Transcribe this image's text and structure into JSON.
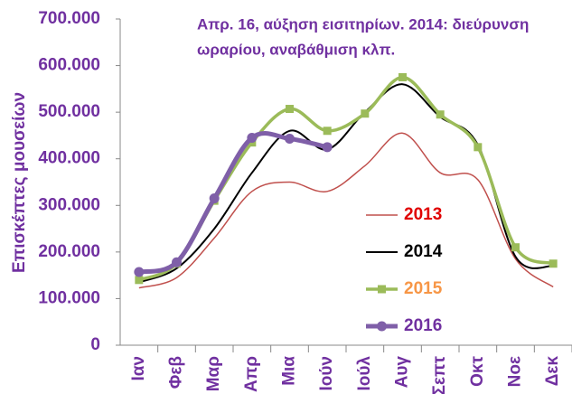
{
  "chart_data": {
    "type": "line",
    "annotation": [
      "Απρ. 16, αύξηση εισιτηρίων.  2014: διεύρυνση",
      "ωραρίου, αναβάθμιση κλπ."
    ],
    "y_label": "Επισκέπτες μουσείων",
    "categories": [
      "Ιαν",
      "Φεβ",
      "Μαρ",
      "Απρ",
      "Μια",
      "Ιούν",
      "Ιούλ",
      "Αυγ",
      "Σεπτ",
      "Οκτ",
      "Νοε",
      "Δεκ"
    ],
    "series": [
      {
        "name": "2013",
        "color": "#c0504d",
        "label_color": "#e00000",
        "width": 1.5,
        "marker": "none",
        "values": [
          123000,
          145000,
          230000,
          330000,
          350000,
          330000,
          385000,
          455000,
          370000,
          355000,
          185000,
          125000
        ]
      },
      {
        "name": "2014",
        "color": "#000000",
        "label_color": "#000000",
        "width": 2,
        "marker": "none",
        "values": [
          135000,
          165000,
          250000,
          370000,
          460000,
          420000,
          500000,
          560000,
          490000,
          430000,
          190000,
          170000
        ]
      },
      {
        "name": "2015",
        "color": "#9bbb59",
        "label_color": "#f79646",
        "width": 3.5,
        "marker": "square",
        "values": [
          140000,
          175000,
          310000,
          435000,
          507000,
          460000,
          497000,
          575000,
          495000,
          425000,
          210000,
          175000
        ]
      },
      {
        "name": "2016",
        "color": "#7f5fa8",
        "label_color": "#7030a0",
        "width": 5,
        "marker": "circle",
        "values": [
          157000,
          178000,
          315000,
          445000,
          443000,
          425000,
          null,
          null,
          null,
          null,
          null,
          null
        ]
      }
    ],
    "ylim": [
      0,
      700000
    ],
    "yticks": [
      0,
      {
        "value": 100000,
        "label": "100.000"
      },
      {
        "value": 200000,
        "label": "200.000"
      },
      {
        "value": 300000,
        "label": "300.000"
      },
      {
        "value": 400000,
        "label": "400.000"
      },
      {
        "value": 500000,
        "label": "500.000"
      },
      {
        "value": 600000,
        "label": "600.000"
      },
      {
        "value": 700000,
        "label": "700.000"
      }
    ],
    "smooth": true,
    "grid": false
  }
}
